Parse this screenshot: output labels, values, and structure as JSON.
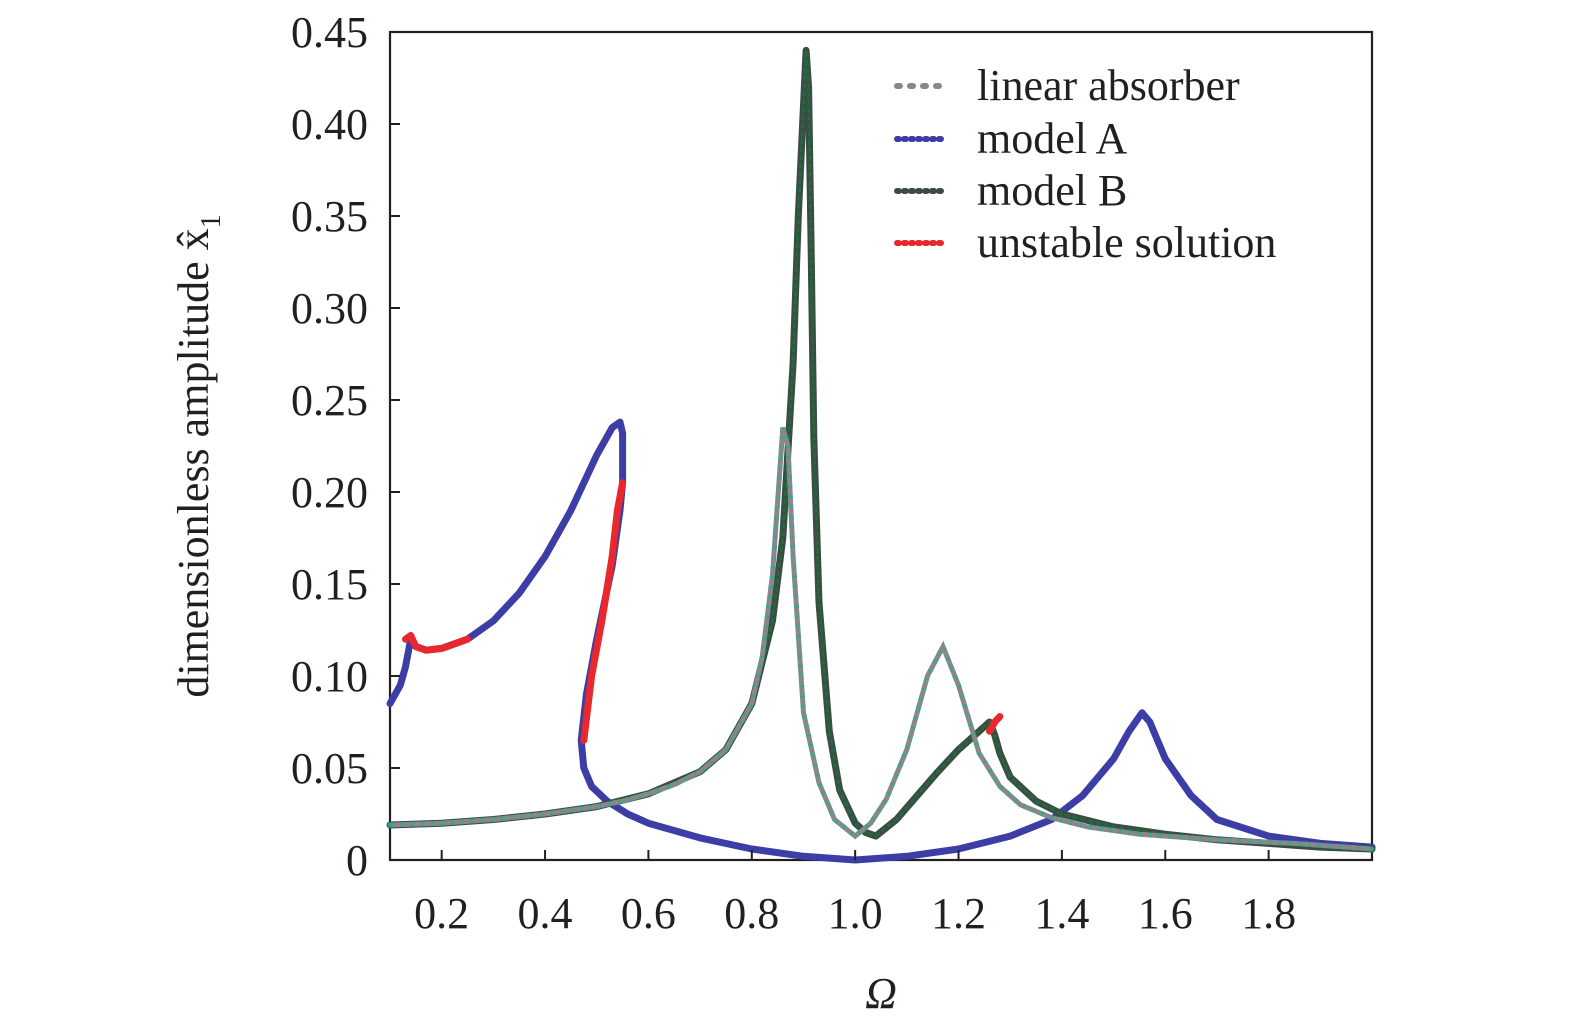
{
  "chart_data": {
    "type": "line",
    "xlabel": "Ω",
    "ylabel": "dimensionless amplitude x̂",
    "ylabel_subscript": "1",
    "xlim": [
      0.1,
      2.0
    ],
    "ylim": [
      0,
      0.45
    ],
    "x_ticks": [
      {
        "value": 0.2,
        "label": "0.2"
      },
      {
        "value": 0.4,
        "label": "0.4"
      },
      {
        "value": 0.6,
        "label": "0.6"
      },
      {
        "value": 0.8,
        "label": "0.8"
      },
      {
        "value": 1.0,
        "label": "1.0"
      },
      {
        "value": 1.2,
        "label": "1.2"
      },
      {
        "value": 1.4,
        "label": "1.4"
      },
      {
        "value": 1.6,
        "label": "1.6"
      },
      {
        "value": 1.8,
        "label": "1.8"
      }
    ],
    "y_ticks": [
      {
        "value": 0,
        "label": "0"
      },
      {
        "value": 0.05,
        "label": "0.05"
      },
      {
        "value": 0.1,
        "label": "0.10"
      },
      {
        "value": 0.15,
        "label": "0.15"
      },
      {
        "value": 0.2,
        "label": "0.20"
      },
      {
        "value": 0.25,
        "label": "0.25"
      },
      {
        "value": 0.3,
        "label": "0.30"
      },
      {
        "value": 0.35,
        "label": "0.35"
      },
      {
        "value": 0.4,
        "label": "0.40"
      },
      {
        "value": 0.45,
        "label": "0.45"
      }
    ],
    "grid": false,
    "legend_position": "top-right",
    "series": [
      {
        "name": "linear absorber",
        "color": "#2aa98f",
        "color2": "#888888",
        "style": "dotted",
        "x": [
          0.1,
          0.2,
          0.3,
          0.4,
          0.5,
          0.55,
          0.6,
          0.65,
          0.7,
          0.75,
          0.8,
          0.82,
          0.84,
          0.86,
          0.87,
          0.88,
          0.9,
          0.93,
          0.96,
          1.0,
          1.03,
          1.06,
          1.1,
          1.14,
          1.17,
          1.2,
          1.24,
          1.28,
          1.32,
          1.38,
          1.45,
          1.55,
          1.7,
          1.85,
          2.0
        ],
        "y": [
          0.019,
          0.02,
          0.022,
          0.025,
          0.029,
          0.032,
          0.036,
          0.041,
          0.048,
          0.06,
          0.085,
          0.11,
          0.155,
          0.235,
          0.225,
          0.165,
          0.08,
          0.042,
          0.022,
          0.013,
          0.02,
          0.033,
          0.06,
          0.1,
          0.116,
          0.095,
          0.058,
          0.04,
          0.03,
          0.023,
          0.018,
          0.014,
          0.011,
          0.009,
          0.006
        ]
      },
      {
        "name": "model A",
        "color": "#3d3da6",
        "style": "solid",
        "x": [
          0.1,
          0.12,
          0.13,
          0.14,
          0.15,
          0.17,
          0.2,
          0.25,
          0.3,
          0.35,
          0.4,
          0.45,
          0.5,
          0.53,
          0.545,
          0.55,
          0.55,
          0.545,
          0.53,
          0.5,
          0.48,
          0.47,
          0.475,
          0.49,
          0.52,
          0.56,
          0.6,
          0.7,
          0.8,
          0.9,
          1.0,
          1.1,
          1.2,
          1.3,
          1.38,
          1.44,
          1.5,
          1.53,
          1.555,
          1.57,
          1.6,
          1.65,
          1.7,
          1.8,
          1.9,
          2.0
        ],
        "y": [
          0.085,
          0.095,
          0.105,
          0.12,
          0.116,
          0.114,
          0.115,
          0.12,
          0.13,
          0.145,
          0.165,
          0.19,
          0.22,
          0.235,
          0.238,
          0.232,
          0.205,
          0.19,
          0.16,
          0.12,
          0.09,
          0.065,
          0.05,
          0.04,
          0.032,
          0.025,
          0.02,
          0.012,
          0.006,
          0.002,
          0.0,
          0.002,
          0.006,
          0.013,
          0.022,
          0.035,
          0.055,
          0.07,
          0.08,
          0.075,
          0.055,
          0.035,
          0.022,
          0.013,
          0.009,
          0.007
        ]
      },
      {
        "name": "model B",
        "color": "#3e4a45",
        "color2": "#1f6b3a",
        "style": "solid",
        "x": [
          0.1,
          0.2,
          0.3,
          0.4,
          0.5,
          0.6,
          0.7,
          0.75,
          0.8,
          0.84,
          0.86,
          0.88,
          0.89,
          0.9,
          0.905,
          0.91,
          0.915,
          0.92,
          0.93,
          0.95,
          0.97,
          1.0,
          1.02,
          1.04,
          1.08,
          1.12,
          1.16,
          1.2,
          1.24,
          1.26,
          1.27,
          1.28,
          1.3,
          1.35,
          1.4,
          1.5,
          1.6,
          1.7,
          1.8,
          1.9,
          2.0
        ],
        "y": [
          0.019,
          0.02,
          0.022,
          0.025,
          0.029,
          0.036,
          0.048,
          0.06,
          0.085,
          0.13,
          0.175,
          0.27,
          0.35,
          0.41,
          0.44,
          0.42,
          0.33,
          0.23,
          0.14,
          0.07,
          0.038,
          0.02,
          0.015,
          0.013,
          0.022,
          0.035,
          0.048,
          0.06,
          0.07,
          0.075,
          0.068,
          0.058,
          0.045,
          0.032,
          0.025,
          0.018,
          0.014,
          0.011,
          0.009,
          0.007,
          0.006
        ]
      },
      {
        "name": "unstable solution",
        "color": "#e8282d",
        "style": "solid",
        "segments": [
          {
            "x": [
              0.13,
              0.14,
              0.15,
              0.17,
              0.2,
              0.25
            ],
            "y": [
              0.12,
              0.122,
              0.116,
              0.114,
              0.115,
              0.12
            ]
          },
          {
            "x": [
              0.55,
              0.54,
              0.53,
              0.51,
              0.49,
              0.475
            ],
            "y": [
              0.205,
              0.19,
              0.165,
              0.13,
              0.1,
              0.065
            ]
          },
          {
            "x": [
              1.26,
              1.27,
              1.28
            ],
            "y": [
              0.07,
              0.075,
              0.078
            ]
          }
        ]
      }
    ]
  }
}
